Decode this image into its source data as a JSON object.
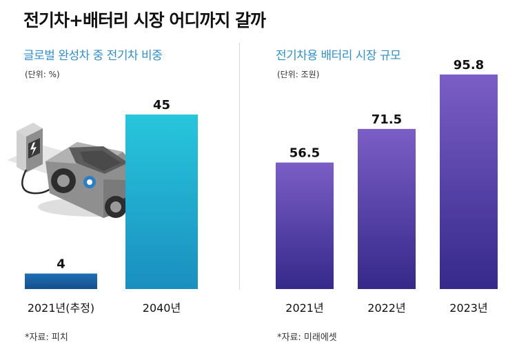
{
  "main_title": "전기차+배터리 시장 어디까지 갈까",
  "colors": {
    "left_low": "#1a5fa3",
    "left_high": "#21c0d6",
    "right_top": "#7c5cc4",
    "right_bottom": "#3a2f8f",
    "title_blue": "#2f8fcf"
  },
  "chart_data": [
    {
      "type": "bar",
      "title": "글로벌 완성차 중 전기차 비중",
      "unit": "(단위: %)",
      "categories": [
        "2021년(추정)",
        "2040년"
      ],
      "values": [
        4,
        45
      ],
      "value_labels": [
        "4",
        "45"
      ],
      "source": "*자료: 피치",
      "illustration": "ev-charging-car"
    },
    {
      "type": "bar",
      "title": "전기차용 배터리 시장 규모",
      "unit": "(단위: 조원)",
      "categories": [
        "2021년",
        "2022년",
        "2023년"
      ],
      "values": [
        56.5,
        71.5,
        95.8
      ],
      "value_labels": [
        "56.5",
        "71.5",
        "95.8"
      ],
      "source": "*자료: 미래에셋"
    }
  ]
}
